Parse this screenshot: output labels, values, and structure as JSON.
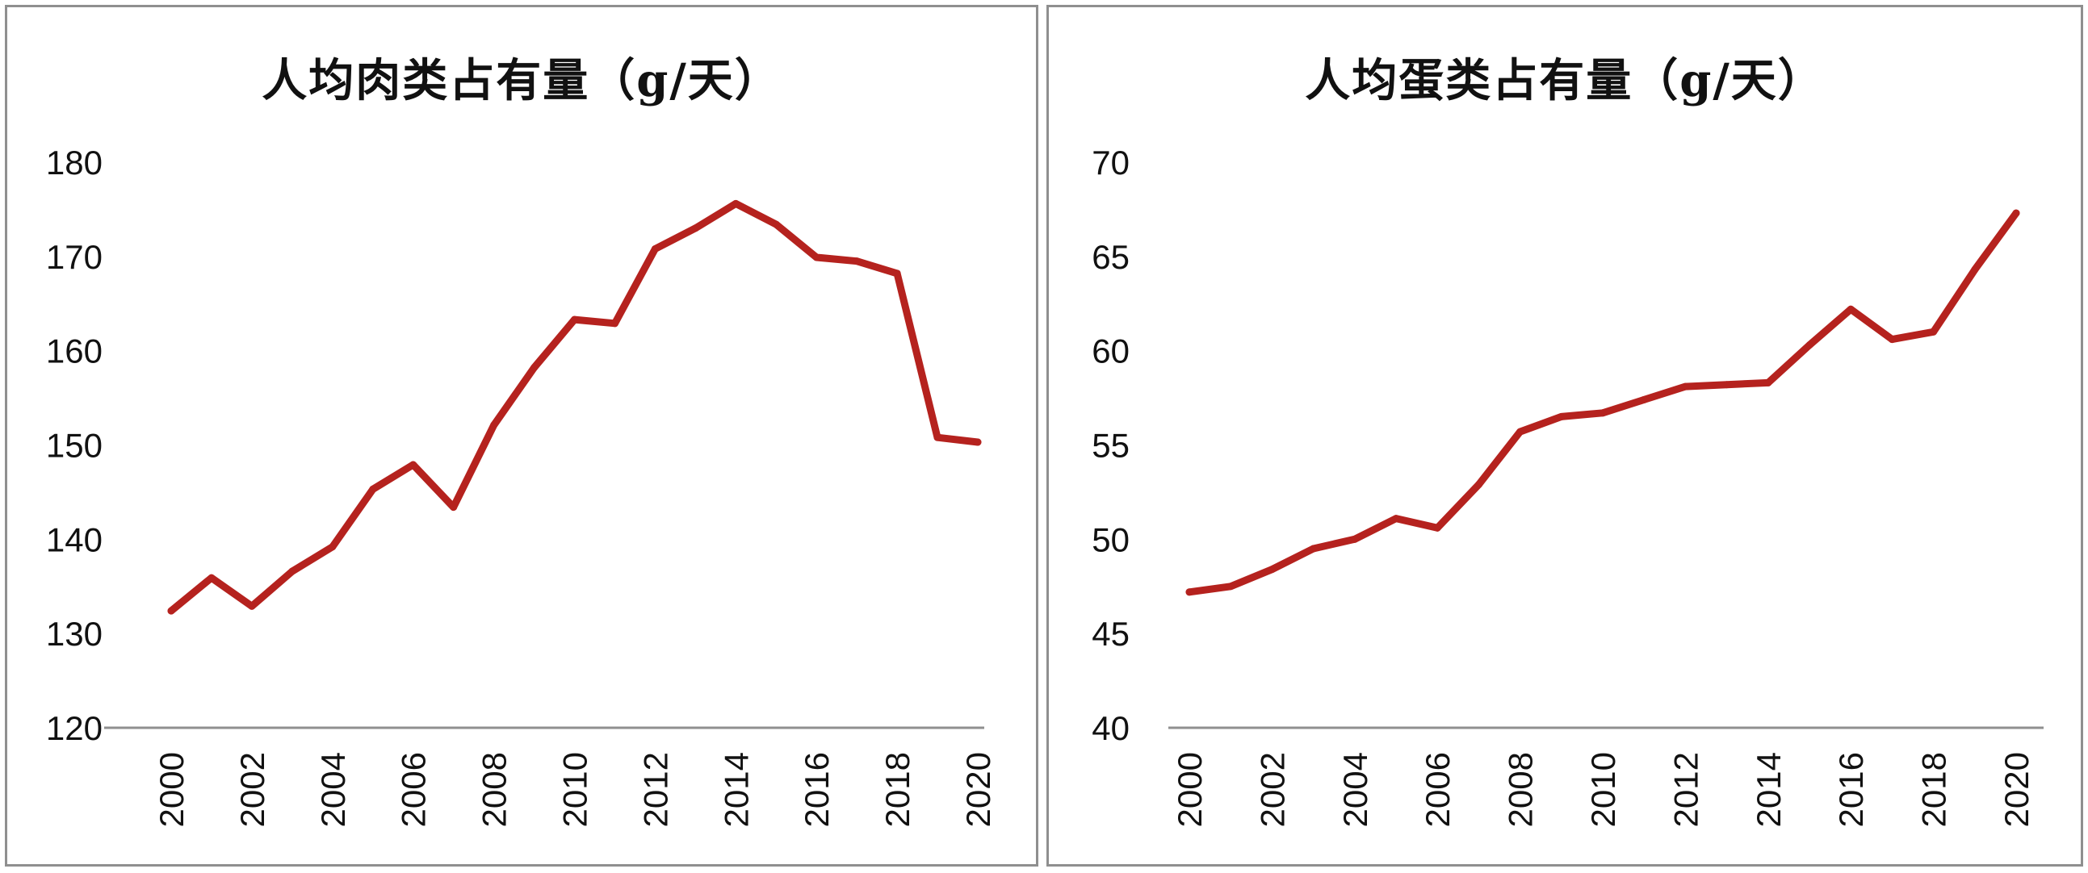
{
  "chart_data": [
    {
      "type": "line",
      "title": "人均肉类占有量（g/天）",
      "xlabel": "",
      "ylabel": "",
      "ylim": [
        120,
        180
      ],
      "yticks": [
        "120",
        "130",
        "140",
        "150",
        "160",
        "170",
        "180"
      ],
      "xticks": [
        "2000",
        "2002",
        "2004",
        "2006",
        "2008",
        "2010",
        "2012",
        "2014",
        "2016",
        "2018",
        "2020"
      ],
      "x": [
        2000,
        2001,
        2002,
        2003,
        2004,
        2005,
        2006,
        2007,
        2008,
        2009,
        2010,
        2011,
        2012,
        2013,
        2014,
        2015,
        2016,
        2017,
        2018,
        2019,
        2020
      ],
      "series": [
        {
          "values": [
            132.4,
            135.9,
            132.9,
            136.6,
            139.2,
            145.3,
            147.9,
            143.4,
            152.1,
            158.2,
            163.3,
            162.9,
            170.8,
            173.0,
            175.6,
            173.4,
            169.9,
            169.5,
            168.2,
            150.8,
            150.3
          ],
          "color": "#b5221e"
        }
      ],
      "grid": false,
      "legend": "none"
    },
    {
      "type": "line",
      "title": "人均蛋类占有量（g/天）",
      "xlabel": "",
      "ylabel": "",
      "ylim": [
        40,
        70
      ],
      "yticks": [
        "40",
        "45",
        "50",
        "55",
        "60",
        "65",
        "70"
      ],
      "xticks": [
        "2000",
        "2002",
        "2004",
        "2006",
        "2008",
        "2010",
        "2012",
        "2014",
        "2016",
        "2018",
        "2020"
      ],
      "x": [
        2000,
        2001,
        2002,
        2003,
        2004,
        2005,
        2006,
        2007,
        2008,
        2009,
        2010,
        2011,
        2012,
        2013,
        2014,
        2015,
        2016,
        2017,
        2018,
        2019,
        2020
      ],
      "series": [
        {
          "values": [
            47.2,
            47.5,
            48.4,
            49.5,
            50.0,
            51.1,
            50.6,
            52.9,
            55.7,
            56.5,
            56.7,
            57.4,
            58.1,
            58.2,
            58.3,
            60.3,
            62.2,
            60.6,
            61.0,
            64.3,
            67.3
          ],
          "color": "#b5221e"
        }
      ],
      "grid": false,
      "legend": "none"
    }
  ]
}
